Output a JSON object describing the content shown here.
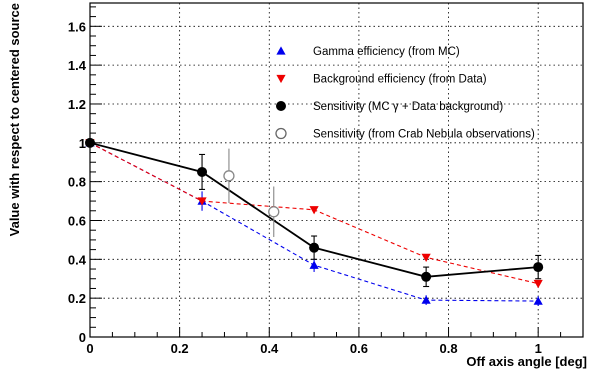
{
  "chart_data": {
    "type": "scatter",
    "xlabel": "Off axis angle [deg]",
    "ylabel": "Value with respect to centered source",
    "xlim": [
      0,
      1.1
    ],
    "ylim": [
      0,
      1.72
    ],
    "xticks": [
      "0",
      "0.2",
      "0.4",
      "0.6",
      "0.8",
      "1"
    ],
    "xtick_values": [
      0,
      0.2,
      0.4,
      0.6,
      0.8,
      1.0
    ],
    "yticks": [
      "0",
      "0.2",
      "0.4",
      "0.6",
      "0.8",
      "1",
      "1.2",
      "1.4",
      "1.6"
    ],
    "ytick_values": [
      0,
      0.2,
      0.4,
      0.6,
      0.8,
      1.0,
      1.2,
      1.4,
      1.6
    ],
    "grid": true,
    "legend_position": "top-right",
    "series": [
      {
        "name": "Gamma efficiency (from MC)",
        "marker": "triangle-up",
        "line": "dashed",
        "color": "#0000ee",
        "x": [
          0,
          0.25,
          0.5,
          0.75,
          1.0
        ],
        "y": [
          1.0,
          0.7,
          0.37,
          0.19,
          0.185
        ],
        "yerr": [
          0,
          0.05,
          0.035,
          0.025,
          0.025
        ]
      },
      {
        "name": "Background efficiency (from Data)",
        "marker": "triangle-down",
        "line": "dashed",
        "color": "#ee0000",
        "x": [
          0,
          0.25,
          0.5,
          0.75,
          1.0
        ],
        "y": [
          1.0,
          0.7,
          0.655,
          0.41,
          0.275
        ],
        "yerr": [
          0,
          0,
          0,
          0,
          0
        ]
      },
      {
        "name": "Sensitivity (MC γ + Data background)",
        "marker": "circle-filled",
        "line": "solid",
        "color": "#000000",
        "x": [
          0,
          0.25,
          0.5,
          0.75,
          1.0
        ],
        "y": [
          1.0,
          0.85,
          0.46,
          0.31,
          0.36
        ],
        "yerr": [
          0,
          0.09,
          0.06,
          0.05,
          0.06
        ]
      },
      {
        "name": "Sensitivity (from Crab Nebula observations)",
        "marker": "circle-open",
        "line": "none",
        "color": "#888888",
        "x": [
          0.31,
          0.41
        ],
        "y": [
          0.83,
          0.645
        ],
        "yerr": [
          0.14,
          0.13
        ]
      }
    ]
  }
}
